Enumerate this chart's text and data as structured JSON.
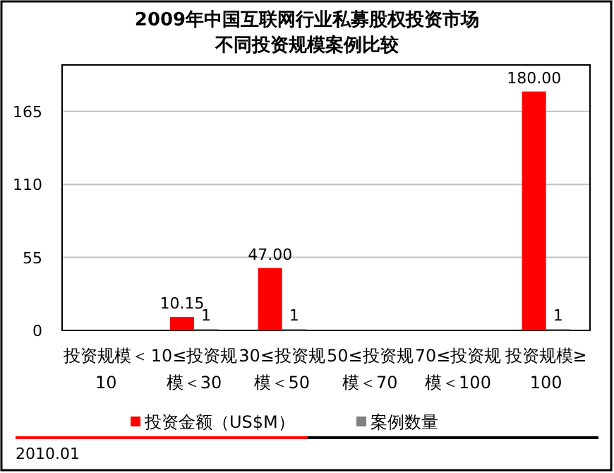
{
  "chart_data": {
    "type": "bar",
    "title": "2009年中国互联网行业私募股权投资市场",
    "subtitle": "不同投资规模案例比较",
    "categories": [
      "投资规模＜10",
      "10≤投资规模＜30",
      "30≤投资规模＜50",
      "50≤投资规模＜70",
      "70≤投资规模＜100",
      "投资规模≥100"
    ],
    "series": [
      {
        "name": "投资金额（US$M）",
        "color": "#ff0000",
        "values": [
          null,
          10.15,
          47,
          null,
          null,
          180
        ],
        "value_labels": [
          null,
          "10.15",
          "47.00",
          null,
          null,
          "180.00"
        ]
      },
      {
        "name": "案例数量",
        "color": "#808080",
        "values": [
          null,
          1,
          1,
          null,
          null,
          1
        ],
        "value_labels": [
          null,
          "1",
          "1",
          null,
          null,
          "1"
        ]
      }
    ],
    "ylim": [
      0,
      200
    ],
    "yticks": [
      0,
      55,
      110,
      165
    ],
    "grid": "y",
    "legend": "bottom",
    "annotations": [
      "2010.01"
    ]
  }
}
